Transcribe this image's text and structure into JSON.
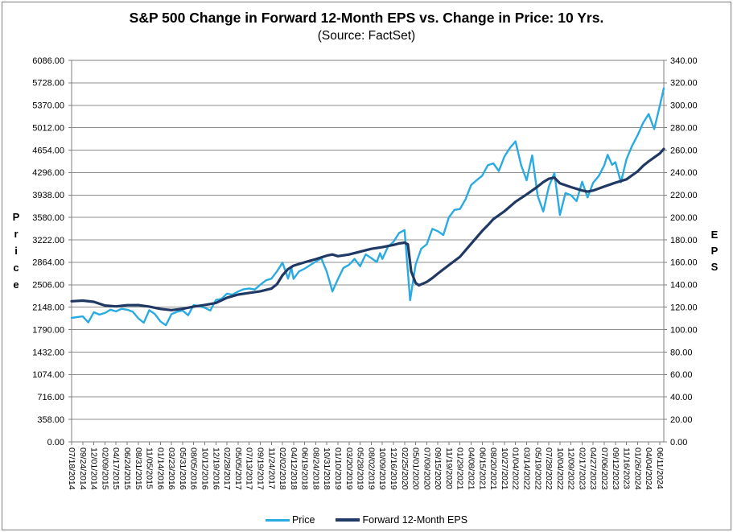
{
  "header": {
    "title": "S&P 500 Change in Forward 12-Month EPS vs. Change in Price: 10 Yrs.",
    "subtitle": "(Source: FactSet)"
  },
  "colors": {
    "price_line": "#29ABE2",
    "eps_line": "#1F3864",
    "grid": "#8C8C8C",
    "plot_border": "#7F7F7F",
    "text": "#000000"
  },
  "legend": {
    "items": [
      {
        "label": "Price",
        "color": "#29ABE2"
      },
      {
        "label": "Forward 12-Month EPS",
        "color": "#1F3864"
      }
    ]
  },
  "chart_data": {
    "type": "line",
    "title": "S&P 500 Change in Forward 12-Month EPS vs. Change in Price: 10 Yrs.",
    "subtitle": "(Source: FactSet)",
    "grid": "horizontal",
    "legend_position": "bottom",
    "left_axis": {
      "label": "Price",
      "min": 0,
      "max": 6086,
      "tick_step": 358,
      "tick_labels": [
        "6086.00",
        "5728.00",
        "5370.00",
        "5012.00",
        "4654.00",
        "4296.00",
        "3938.00",
        "3580.00",
        "3222.00",
        "2864.00",
        "2506.00",
        "2148.00",
        "1790.00",
        "1432.00",
        "1074.00",
        "716.00",
        "358.00",
        "0.00"
      ]
    },
    "right_axis": {
      "label": "EPS",
      "min": 0,
      "max": 340,
      "tick_step": 20,
      "tick_labels": [
        "340.00",
        "320.00",
        "300.00",
        "280.00",
        "260.00",
        "240.00",
        "220.00",
        "200.00",
        "180.00",
        "160.00",
        "140.00",
        "120.00",
        "100.00",
        "80.00",
        "60.00",
        "40.00",
        "20.00",
        "0.00"
      ]
    },
    "x_ticks": [
      "07/18/2014",
      "09/24/2014",
      "12/01/2014",
      "02/09/2015",
      "04/17/2015",
      "06/24/2015",
      "08/31/2015",
      "11/05/2015",
      "01/14/2016",
      "03/23/2016",
      "05/31/2016",
      "08/05/2016",
      "10/12/2016",
      "12/19/2016",
      "02/28/2017",
      "05/05/2017",
      "07/13/2017",
      "09/19/2017",
      "11/24/2017",
      "02/02/2018",
      "04/12/2018",
      "06/19/2018",
      "08/24/2018",
      "10/31/2018",
      "01/10/2019",
      "03/20/2019",
      "05/28/2019",
      "08/02/2019",
      "10/09/2019",
      "12/16/2019",
      "02/25/2020",
      "05/01/2020",
      "07/09/2020",
      "09/15/2020",
      "11/19/2020",
      "01/29/2021",
      "04/08/2021",
      "06/15/2021",
      "08/20/2021",
      "10/27/2021",
      "01/04/2022",
      "03/14/2022",
      "05/19/2022",
      "07/28/2022",
      "10/04/2022",
      "12/09/2022",
      "02/17/2023",
      "04/27/2023",
      "07/06/2023",
      "09/12/2023",
      "11/16/2023",
      "01/26/2024",
      "04/04/2024",
      "06/11/2024"
    ],
    "series": [
      {
        "name": "Price",
        "axis": "left",
        "color": "#29ABE2",
        "width": 2.4,
        "points": [
          [
            0,
            1978
          ],
          [
            0.5,
            1990
          ],
          [
            1,
            2002
          ],
          [
            1.5,
            1905
          ],
          [
            2,
            2068
          ],
          [
            2.5,
            2030
          ],
          [
            3,
            2055
          ],
          [
            3.5,
            2108
          ],
          [
            4,
            2081
          ],
          [
            4.5,
            2122
          ],
          [
            5,
            2108
          ],
          [
            5.5,
            2078
          ],
          [
            6,
            1972
          ],
          [
            6.5,
            1900
          ],
          [
            7,
            2100
          ],
          [
            7.5,
            2040
          ],
          [
            8,
            1922
          ],
          [
            8.5,
            1860
          ],
          [
            9,
            2037
          ],
          [
            9.5,
            2075
          ],
          [
            10,
            2097
          ],
          [
            10.5,
            2020
          ],
          [
            11,
            2183
          ],
          [
            11.5,
            2165
          ],
          [
            12,
            2139
          ],
          [
            12.5,
            2095
          ],
          [
            13,
            2263
          ],
          [
            13.5,
            2280
          ],
          [
            14,
            2364
          ],
          [
            14.5,
            2350
          ],
          [
            15,
            2399
          ],
          [
            15.5,
            2435
          ],
          [
            16,
            2447
          ],
          [
            16.5,
            2430
          ],
          [
            17,
            2506
          ],
          [
            17.5,
            2575
          ],
          [
            18,
            2602
          ],
          [
            18.5,
            2720
          ],
          [
            19,
            2860
          ],
          [
            19.5,
            2605
          ],
          [
            19.8,
            2780
          ],
          [
            20,
            2600
          ],
          [
            20.5,
            2720
          ],
          [
            21,
            2763
          ],
          [
            21.5,
            2820
          ],
          [
            22,
            2875
          ],
          [
            22.5,
            2930
          ],
          [
            23,
            2712
          ],
          [
            23.5,
            2400
          ],
          [
            24,
            2597
          ],
          [
            24.5,
            2776
          ],
          [
            25,
            2824
          ],
          [
            25.5,
            2920
          ],
          [
            26,
            2802
          ],
          [
            26.5,
            2990
          ],
          [
            27,
            2932
          ],
          [
            27.5,
            2870
          ],
          [
            27.8,
            3010
          ],
          [
            28,
            2919
          ],
          [
            28.5,
            3110
          ],
          [
            29,
            3191
          ],
          [
            29.5,
            3330
          ],
          [
            30,
            3380
          ],
          [
            30.5,
            2260
          ],
          [
            31,
            2831
          ],
          [
            31.5,
            3080
          ],
          [
            32,
            3152
          ],
          [
            32.5,
            3397
          ],
          [
            33,
            3360
          ],
          [
            33.5,
            3300
          ],
          [
            34,
            3582
          ],
          [
            34.5,
            3700
          ],
          [
            35,
            3714
          ],
          [
            35.5,
            3870
          ],
          [
            36,
            4097
          ],
          [
            36.5,
            4174
          ],
          [
            37,
            4246
          ],
          [
            37.5,
            4412
          ],
          [
            38,
            4442
          ],
          [
            38.5,
            4320
          ],
          [
            39,
            4552
          ],
          [
            39.5,
            4690
          ],
          [
            40,
            4793
          ],
          [
            40.5,
            4418
          ],
          [
            41,
            4173
          ],
          [
            41.5,
            4570
          ],
          [
            42,
            3923
          ],
          [
            42.5,
            3675
          ],
          [
            43,
            4072
          ],
          [
            43.5,
            4290
          ],
          [
            44,
            3620
          ],
          [
            44.5,
            3970
          ],
          [
            45,
            3934
          ],
          [
            45.5,
            3840
          ],
          [
            46,
            4150
          ],
          [
            46.5,
            3900
          ],
          [
            47,
            4135
          ],
          [
            47.5,
            4240
          ],
          [
            48,
            4412
          ],
          [
            48.3,
            4580
          ],
          [
            48.7,
            4420
          ],
          [
            49,
            4462
          ],
          [
            49.5,
            4140
          ],
          [
            50,
            4508
          ],
          [
            50.5,
            4720
          ],
          [
            51,
            4891
          ],
          [
            51.5,
            5090
          ],
          [
            52,
            5230
          ],
          [
            52.5,
            4990
          ],
          [
            53,
            5360
          ],
          [
            53.4,
            5640
          ]
        ]
      },
      {
        "name": "Forward 12-Month EPS",
        "axis": "right",
        "color": "#1F3864",
        "width": 3.2,
        "points": [
          [
            0,
            125.3
          ],
          [
            1,
            125.9
          ],
          [
            2,
            124.8
          ],
          [
            3,
            121.5
          ],
          [
            4,
            120.7
          ],
          [
            5,
            121.8
          ],
          [
            6,
            121.9
          ],
          [
            7,
            120.6
          ],
          [
            8,
            118.5
          ],
          [
            9,
            117.4
          ],
          [
            10,
            118.6
          ],
          [
            11,
            120.6
          ],
          [
            12,
            122.0
          ],
          [
            13,
            123.8
          ],
          [
            14,
            128.5
          ],
          [
            15,
            131.3
          ],
          [
            16,
            132.8
          ],
          [
            17,
            134.2
          ],
          [
            18,
            136.6
          ],
          [
            18.5,
            140.5
          ],
          [
            19,
            148.5
          ],
          [
            19.5,
            154
          ],
          [
            20,
            157
          ],
          [
            21,
            160
          ],
          [
            22,
            162.8
          ],
          [
            23,
            166
          ],
          [
            23.5,
            167
          ],
          [
            24,
            165.5
          ],
          [
            25,
            167
          ],
          [
            26,
            169.5
          ],
          [
            27,
            172
          ],
          [
            28,
            173.5
          ],
          [
            29,
            175.5
          ],
          [
            29.5,
            176.8
          ],
          [
            30,
            177.5
          ],
          [
            30.3,
            176
          ],
          [
            30.6,
            152
          ],
          [
            31,
            141.5
          ],
          [
            31.3,
            139.5
          ],
          [
            32,
            142.5
          ],
          [
            32.5,
            146
          ],
          [
            33,
            150
          ],
          [
            34,
            157.5
          ],
          [
            35,
            165
          ],
          [
            36,
            176.5
          ],
          [
            37,
            188
          ],
          [
            37.5,
            193
          ],
          [
            38,
            198.5
          ],
          [
            39,
            205.5
          ],
          [
            40,
            214
          ],
          [
            41,
            220.5
          ],
          [
            42,
            227.5
          ],
          [
            42.5,
            231.5
          ],
          [
            43,
            234.5
          ],
          [
            43.5,
            235.5
          ],
          [
            44,
            230.5
          ],
          [
            45,
            227
          ],
          [
            46,
            224
          ],
          [
            46.5,
            223
          ],
          [
            47,
            224
          ],
          [
            48,
            227.5
          ],
          [
            49,
            231
          ],
          [
            50,
            234
          ],
          [
            51,
            241
          ],
          [
            51.5,
            246
          ],
          [
            52,
            250
          ],
          [
            52.5,
            253.5
          ],
          [
            53,
            257
          ],
          [
            53.4,
            261
          ]
        ]
      }
    ]
  }
}
